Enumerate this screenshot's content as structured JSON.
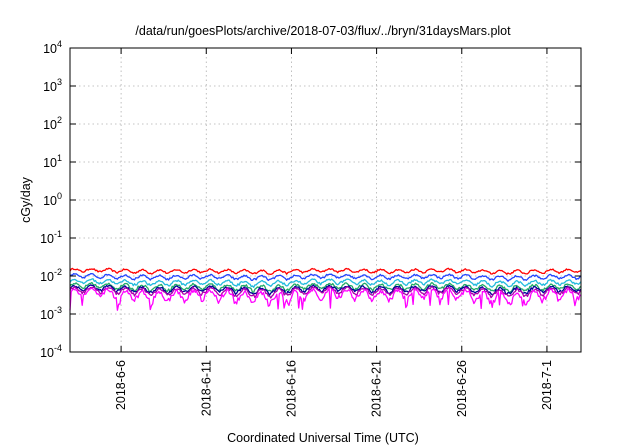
{
  "chart_data": {
    "type": "line",
    "title": "/data/run/goesPlots/archive/2018-07-03/flux/../bryn/31daysMars.plot",
    "xlabel": "Coordinated Universal Time (UTC)",
    "ylabel": "cGy/day",
    "yscale": "log",
    "ylim": [
      0.0001,
      10000
    ],
    "yticks": [
      {
        "value": 0.0001,
        "base": "10",
        "exp": "-4"
      },
      {
        "value": 0.001,
        "base": "10",
        "exp": "-3"
      },
      {
        "value": 0.01,
        "base": "10",
        "exp": "-2"
      },
      {
        "value": 0.1,
        "base": "10",
        "exp": "-1"
      },
      {
        "value": 1,
        "base": "10",
        "exp": "0"
      },
      {
        "value": 10,
        "base": "10",
        "exp": "1"
      },
      {
        "value": 100,
        "base": "10",
        "exp": "2"
      },
      {
        "value": 1000,
        "base": "10",
        "exp": "3"
      },
      {
        "value": 10000,
        "base": "10",
        "exp": "4"
      }
    ],
    "xlim": [
      "2018-06-03",
      "2018-07-03"
    ],
    "xticks": [
      "2018-6-6",
      "2018-6-11",
      "2018-6-16",
      "2018-6-21",
      "2018-6-26",
      "2018-7-1"
    ],
    "grid": true,
    "legend": "none",
    "series": [
      {
        "color": "#ff0000",
        "typical": 0.0135,
        "amplitude": 0.0015
      },
      {
        "color": "#2244ff",
        "typical": 0.0095,
        "amplitude": 0.0012
      },
      {
        "color": "#22bbdd",
        "typical": 0.0068,
        "amplitude": 0.001
      },
      {
        "color": "#22aa66",
        "typical": 0.0052,
        "amplitude": 0.0009
      },
      {
        "color": "#000099",
        "typical": 0.0045,
        "amplitude": 0.0008
      },
      {
        "color": "#aa00aa",
        "typical": 0.004,
        "amplitude": 0.0008
      },
      {
        "color": "#ff00ff",
        "typical": 0.0032,
        "amplitude": 0.001
      }
    ]
  }
}
